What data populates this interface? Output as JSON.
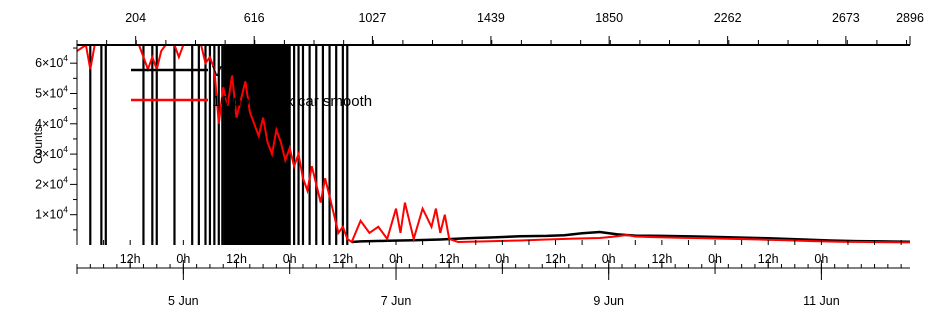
{
  "chart_data": {
    "type": "line",
    "ylabel": "Counts",
    "ylim": [
      0,
      66000
    ],
    "y_ticks": [
      {
        "value": 10000,
        "mantissa": "1",
        "label": "1×10",
        "exp": "4"
      },
      {
        "value": 20000,
        "mantissa": "2",
        "label": "2×10",
        "exp": "4"
      },
      {
        "value": 30000,
        "mantissa": "3",
        "label": "3×10",
        "exp": "4"
      },
      {
        "value": 40000,
        "mantissa": "4",
        "label": "4×10",
        "exp": "4"
      },
      {
        "value": 50000,
        "mantissa": "5",
        "label": "5×10",
        "exp": "4"
      },
      {
        "value": 60000,
        "mantissa": "6",
        "label": "6×10",
        "exp": "4"
      }
    ],
    "top_axis": {
      "range": [
        0,
        2896
      ],
      "ticks": [
        204,
        616,
        1027,
        1439,
        1850,
        2262,
        2673,
        2896
      ]
    },
    "bottom_axis": {
      "range_hours": [
        0,
        188
      ],
      "hour_ticks": [
        {
          "hour": 12,
          "label": "12h"
        },
        {
          "hour": 24,
          "label": "0h"
        },
        {
          "hour": 36,
          "label": "12h"
        },
        {
          "hour": 48,
          "label": "0h"
        },
        {
          "hour": 60,
          "label": "12h"
        },
        {
          "hour": 72,
          "label": "0h"
        },
        {
          "hour": 84,
          "label": "12h"
        },
        {
          "hour": 96,
          "label": "0h"
        },
        {
          "hour": 108,
          "label": "12h"
        },
        {
          "hour": 120,
          "label": "0h"
        },
        {
          "hour": 132,
          "label": "12h"
        },
        {
          "hour": 144,
          "label": "0h"
        },
        {
          "hour": 156,
          "label": "12h"
        },
        {
          "hour": 168,
          "label": "0h"
        }
      ],
      "date_ticks": [
        {
          "hour": 24,
          "label": "5 Jun"
        },
        {
          "hour": 72,
          "label": "7 Jun"
        },
        {
          "hour": 120,
          "label": "9 Jun"
        },
        {
          "hour": 168,
          "label": "11 Jun"
        }
      ]
    },
    "legend": {
      "placement": "top-left",
      "entries": [
        {
          "label": "Value",
          "color": "#000000"
        },
        {
          "label": "10 point box car smooth",
          "color": "#ff0000"
        }
      ]
    },
    "series": [
      {
        "name": "Value",
        "color": "#000000",
        "style": "vertical-spikes",
        "spikes": [
          {
            "x": 3,
            "y": 66000
          },
          {
            "x": 5.5,
            "y": 66000
          },
          {
            "x": 6.5,
            "y": 66000
          },
          {
            "x": 15,
            "y": 66000
          },
          {
            "x": 17,
            "y": 66000
          },
          {
            "x": 18,
            "y": 66000
          },
          {
            "x": 22,
            "y": 66000
          },
          {
            "x": 26,
            "y": 66000
          },
          {
            "x": 27.5,
            "y": 66000
          },
          {
            "x": 29,
            "y": 66000
          },
          {
            "x": 30,
            "y": 66000
          },
          {
            "x": 31,
            "y": 66000
          },
          {
            "x": 32,
            "y": 66000
          },
          {
            "x": 32.8,
            "y": 66000
          },
          {
            "x": 33.6,
            "y": 66000
          },
          {
            "x": 34.4,
            "y": 66000
          },
          {
            "x": 35.2,
            "y": 66000
          },
          {
            "x": 36,
            "y": 66000
          },
          {
            "x": 36.8,
            "y": 66000
          },
          {
            "x": 37.6,
            "y": 66000
          },
          {
            "x": 38.4,
            "y": 66000
          },
          {
            "x": 39.2,
            "y": 66000
          },
          {
            "x": 40,
            "y": 66000
          },
          {
            "x": 40.8,
            "y": 66000
          },
          {
            "x": 41.6,
            "y": 66000
          },
          {
            "x": 42.4,
            "y": 66000
          },
          {
            "x": 43.2,
            "y": 66000
          },
          {
            "x": 44,
            "y": 66000
          },
          {
            "x": 44.8,
            "y": 66000
          },
          {
            "x": 45.6,
            "y": 66000
          },
          {
            "x": 46.4,
            "y": 66000
          },
          {
            "x": 47.2,
            "y": 66000
          },
          {
            "x": 48,
            "y": 66000
          },
          {
            "x": 49,
            "y": 66000
          },
          {
            "x": 50,
            "y": 66000
          },
          {
            "x": 51,
            "y": 66000
          },
          {
            "x": 52.5,
            "y": 66000
          },
          {
            "x": 54,
            "y": 66000
          },
          {
            "x": 55.5,
            "y": 66000
          },
          {
            "x": 57,
            "y": 66000
          },
          {
            "x": 58.5,
            "y": 66000
          },
          {
            "x": 60,
            "y": 66000
          },
          {
            "x": 61,
            "y": 66000
          }
        ],
        "dense_band": {
          "from": 33,
          "to": 48
        },
        "line": [
          [
            62,
            1000
          ],
          [
            64,
            1200
          ],
          [
            70,
            1400
          ],
          [
            76,
            1600
          ],
          [
            82,
            1800
          ],
          [
            88,
            2200
          ],
          [
            94,
            2500
          ],
          [
            100,
            2900
          ],
          [
            106,
            3000
          ],
          [
            110,
            3200
          ],
          [
            114,
            3900
          ],
          [
            118,
            4300
          ],
          [
            122,
            3500
          ],
          [
            126,
            3100
          ],
          [
            132,
            3000
          ],
          [
            140,
            2800
          ],
          [
            148,
            2500
          ],
          [
            156,
            2200
          ],
          [
            164,
            1800
          ],
          [
            170,
            1500
          ],
          [
            176,
            1300
          ],
          [
            182,
            1200
          ],
          [
            188,
            1100
          ]
        ]
      },
      {
        "name": "10 point box car smooth",
        "color": "#ff0000",
        "points": [
          [
            0,
            64000
          ],
          [
            2,
            66000
          ],
          [
            3,
            58000
          ],
          [
            4,
            66000
          ],
          [
            12,
            66000
          ],
          [
            14,
            66000
          ],
          [
            15,
            62000
          ],
          [
            16,
            58000
          ],
          [
            17,
            62000
          ],
          [
            18,
            58000
          ],
          [
            19,
            64000
          ],
          [
            20,
            66000
          ],
          [
            22,
            66000
          ],
          [
            23,
            62000
          ],
          [
            24,
            66000
          ],
          [
            28,
            66000
          ],
          [
            29,
            60000
          ],
          [
            30,
            62000
          ],
          [
            31,
            58000
          ],
          [
            32,
            40000
          ],
          [
            33,
            52000
          ],
          [
            34,
            46000
          ],
          [
            35,
            56000
          ],
          [
            36,
            42000
          ],
          [
            37,
            48000
          ],
          [
            38,
            54000
          ],
          [
            39,
            44000
          ],
          [
            40,
            40000
          ],
          [
            41,
            36000
          ],
          [
            42,
            42000
          ],
          [
            43,
            34000
          ],
          [
            44,
            30000
          ],
          [
            45,
            38000
          ],
          [
            46,
            34000
          ],
          [
            47,
            28000
          ],
          [
            48,
            32000
          ],
          [
            49,
            26000
          ],
          [
            50,
            30000
          ],
          [
            51,
            22000
          ],
          [
            52,
            18000
          ],
          [
            53,
            26000
          ],
          [
            54,
            20000
          ],
          [
            55,
            14000
          ],
          [
            56,
            22000
          ],
          [
            57,
            16000
          ],
          [
            58,
            10000
          ],
          [
            59,
            4000
          ],
          [
            60,
            6000
          ],
          [
            61,
            2000
          ],
          [
            62,
            1000
          ],
          [
            64,
            8000
          ],
          [
            66,
            4000
          ],
          [
            68,
            6000
          ],
          [
            70,
            2000
          ],
          [
            72,
            12000
          ],
          [
            73,
            4000
          ],
          [
            74,
            14000
          ],
          [
            75,
            8000
          ],
          [
            76,
            2000
          ],
          [
            78,
            12000
          ],
          [
            80,
            6000
          ],
          [
            81,
            12000
          ],
          [
            82,
            4000
          ],
          [
            83,
            10000
          ],
          [
            84,
            2000
          ],
          [
            86,
            1000
          ],
          [
            92,
            1200
          ],
          [
            100,
            1500
          ],
          [
            106,
            1800
          ],
          [
            112,
            2100
          ],
          [
            118,
            2300
          ],
          [
            122,
            2900
          ],
          [
            124,
            3300
          ],
          [
            126,
            2800
          ],
          [
            130,
            2600
          ],
          [
            136,
            2400
          ],
          [
            142,
            2200
          ],
          [
            148,
            2000
          ],
          [
            154,
            1800
          ],
          [
            160,
            1600
          ],
          [
            166,
            1300
          ],
          [
            172,
            1100
          ],
          [
            178,
            1000
          ],
          [
            184,
            900
          ],
          [
            188,
            850
          ]
        ]
      }
    ]
  }
}
